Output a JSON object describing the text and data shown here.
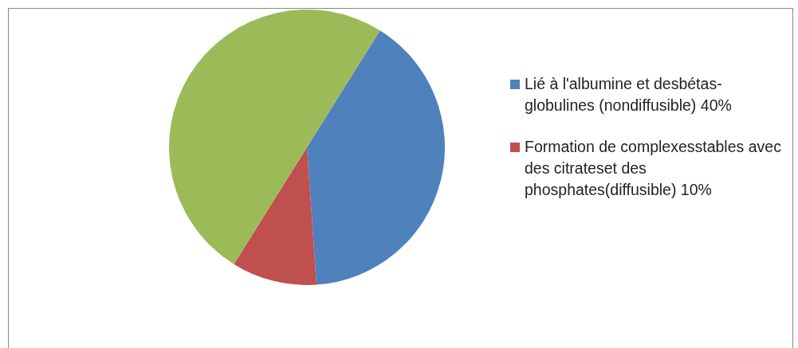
{
  "chart_data": {
    "type": "pie",
    "categories": [
      "Lié à l'albumine et desbétas-globulines (nondiffusible) 40%",
      "Formation de complexesstables avec des citrateset des phosphates(diffusible) 10%",
      null
    ],
    "values": [
      40,
      10,
      50
    ],
    "colors": [
      "#4f81bd",
      "#c0504d",
      "#9bbb59"
    ],
    "legend": "right"
  }
}
